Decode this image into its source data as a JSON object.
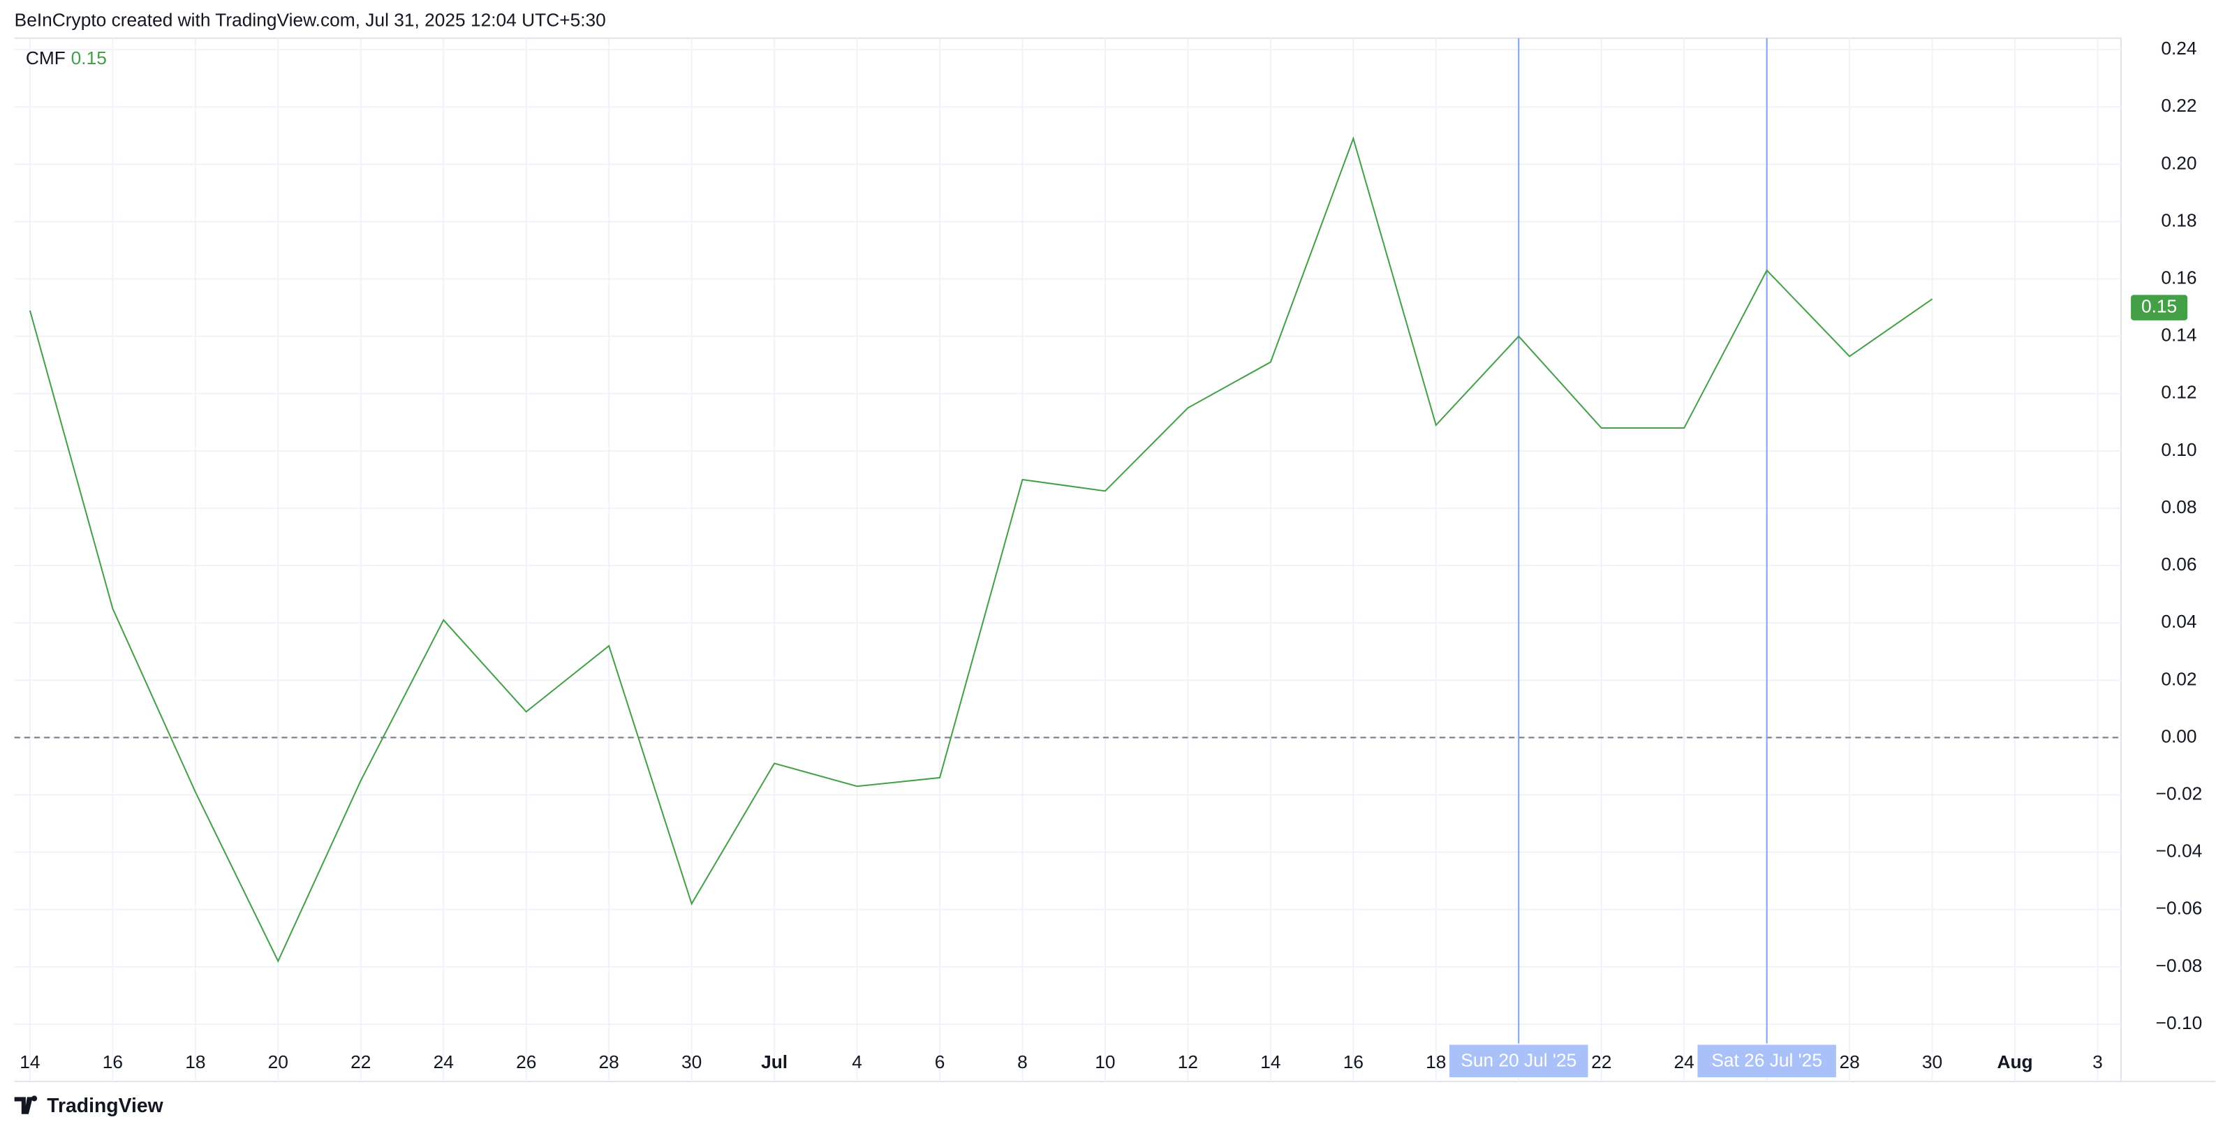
{
  "header": "BeInCrypto created with TradingView.com, Jul 31, 2025 12:04 UTC+5:30",
  "footer": "TradingView",
  "chart_data": {
    "type": "line",
    "categories": [
      "14",
      "16",
      "18",
      "20",
      "22",
      "24",
      "26",
      "28",
      "30",
      "Jul",
      "4",
      "6",
      "8",
      "10",
      "12",
      "14",
      "16",
      "18",
      "20",
      "22",
      "24",
      "26",
      "28",
      "30",
      "Aug",
      "3"
    ],
    "series": [
      {
        "name": "CMF",
        "color": "#43a047",
        "values": [
          0.149,
          0.045,
          -0.019,
          -0.078,
          -0.015,
          0.041,
          0.009,
          0.032,
          -0.058,
          -0.009,
          -0.017,
          -0.014,
          0.09,
          0.086,
          0.115,
          0.131,
          0.209,
          0.109,
          0.14,
          0.108,
          0.108,
          0.163,
          0.133,
          0.153,
          null,
          null
        ]
      }
    ],
    "last_value": 0.15,
    "ylim": [
      -0.12,
      0.244
    ],
    "yticks": [
      {
        "value": 0.24,
        "label": "0.24"
      },
      {
        "value": 0.22,
        "label": "0.22"
      },
      {
        "value": 0.2,
        "label": "0.20"
      },
      {
        "value": 0.18,
        "label": "0.18"
      },
      {
        "value": 0.16,
        "label": "0.16"
      },
      {
        "value": 0.14,
        "label": "0.14"
      },
      {
        "value": 0.12,
        "label": "0.12"
      },
      {
        "value": 0.1,
        "label": "0.10"
      },
      {
        "value": 0.08,
        "label": "0.08"
      },
      {
        "value": 0.06,
        "label": "0.06"
      },
      {
        "value": 0.04,
        "label": "0.04"
      },
      {
        "value": 0.02,
        "label": "0.02"
      },
      {
        "value": 0,
        "label": "0.00"
      },
      {
        "value": -0.02,
        "label": "−0.02"
      },
      {
        "value": -0.04,
        "label": "−0.04"
      },
      {
        "value": -0.06,
        "label": "−0.06"
      },
      {
        "value": -0.08,
        "label": "−0.08"
      },
      {
        "value": -0.1,
        "label": "−0.10"
      }
    ],
    "grid": true,
    "annotations": [
      "Sun 20 Jul '25",
      "Sat 26 Jul '25"
    ]
  }
}
